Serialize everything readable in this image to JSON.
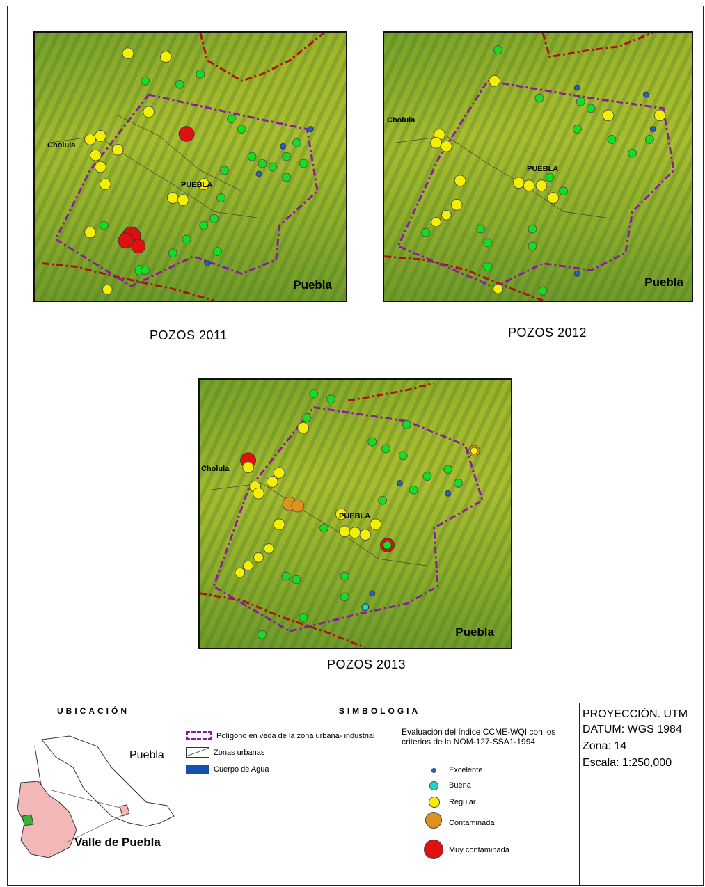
{
  "maps": [
    {
      "caption": "POZOS 2011",
      "region_label": "Puebla",
      "cities": [
        "Cholula",
        "PUEBLA"
      ]
    },
    {
      "caption": "POZOS 2012",
      "region_label": "Puebla",
      "cities": [
        "Cholula",
        "PUEBLA"
      ]
    },
    {
      "caption": "POZOS 2013",
      "region_label": "Puebla",
      "cities": [
        "Cholula",
        "PUEBLA"
      ]
    }
  ],
  "legend": {
    "ubicacion": {
      "header": "UBICACIÓN",
      "state_label": "Puebla",
      "valley_label": "Valle de Puebla"
    },
    "simbologia": {
      "header": "SIMBOLOGIA",
      "items": [
        {
          "label": "Polígono en veda de la zona urbana- industrial"
        },
        {
          "label": "Zonas urbanas"
        },
        {
          "label": "Cuerpo de Agua"
        }
      ],
      "index_title": "Evaluación del índice  CCME-WQI  con los criterios de la NOM-127-SSA1-1994",
      "quality_classes": [
        {
          "label": "Excelente",
          "color": "#1f5fd1"
        },
        {
          "label": "Buena",
          "color": "#20d8c8"
        },
        {
          "label": "Regular",
          "color": "#f4f000"
        },
        {
          "label": "Contaminada",
          "color": "#e0901c"
        },
        {
          "label": "Muy contaminada",
          "color": "#e01010"
        }
      ]
    },
    "projection": {
      "line1": "PROYECCIÓN. UTM",
      "line2": "DATUM: WGS 1984",
      "line3": "Zona: 14",
      "line4": "Escala: 1:250,000"
    }
  },
  "colors": {
    "excelente": "#1f5fd1",
    "buena": "#20d8c8",
    "regular": "#f4f000",
    "contaminada": "#e0901c",
    "muy_contaminada": "#e01010",
    "verde": "#10e020",
    "polygon": "#8a1aa0",
    "state_border": "#b01010"
  }
}
